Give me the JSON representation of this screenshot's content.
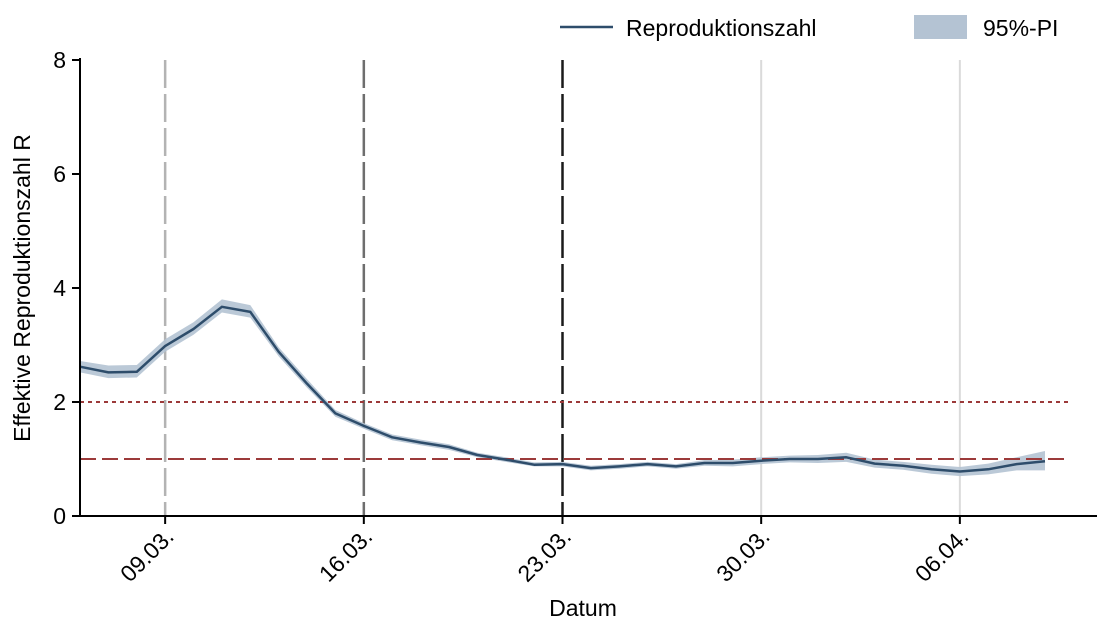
{
  "chart_data": {
    "type": "line",
    "title": "",
    "xlabel": "Datum",
    "ylabel": "Effektive Reproduktionszahl R",
    "ylim": [
      0,
      8
    ],
    "xlim": [
      "2020-03-06",
      "2020-04-09"
    ],
    "yticks": [
      0,
      2,
      4,
      6,
      8
    ],
    "xticks": [
      {
        "date": "2020-03-09",
        "label": "09.03."
      },
      {
        "date": "2020-03-16",
        "label": "16.03."
      },
      {
        "date": "2020-03-23",
        "label": "23.03."
      },
      {
        "date": "2020-03-30",
        "label": "30.03."
      },
      {
        "date": "2020-04-06",
        "label": "06.04."
      }
    ],
    "legend": {
      "position": "top-right",
      "line_label": "Reproduktionszahl",
      "band_label": "95%-PI"
    },
    "colors": {
      "line": "#2e4d6b",
      "band": "#b4c3d3",
      "reference": "#9c3a3a",
      "event_1": "#b3b3b3",
      "event_2": "#6e6e6e",
      "event_3": "#1a1a1a",
      "grid": "#dadada"
    },
    "vertical_markers": [
      {
        "date": "2020-03-09",
        "style": "event_1"
      },
      {
        "date": "2020-03-16",
        "style": "event_2"
      },
      {
        "date": "2020-03-23",
        "style": "event_3"
      },
      {
        "date": "2020-03-30",
        "style": "grid"
      },
      {
        "date": "2020-04-06",
        "style": "grid"
      }
    ],
    "reference_lines": [
      {
        "y": 2,
        "style": "dotted"
      },
      {
        "y": 1,
        "style": "dashed"
      }
    ],
    "series": [
      {
        "name": "Reproduktionszahl",
        "x": [
          "2020-03-06",
          "2020-03-07",
          "2020-03-08",
          "2020-03-09",
          "2020-03-10",
          "2020-03-11",
          "2020-03-12",
          "2020-03-13",
          "2020-03-14",
          "2020-03-15",
          "2020-03-16",
          "2020-03-17",
          "2020-03-18",
          "2020-03-19",
          "2020-03-20",
          "2020-03-21",
          "2020-03-22",
          "2020-03-23",
          "2020-03-24",
          "2020-03-25",
          "2020-03-26",
          "2020-03-27",
          "2020-03-28",
          "2020-03-29",
          "2020-03-30",
          "2020-03-31",
          "2020-04-01",
          "2020-04-02",
          "2020-04-03",
          "2020-04-04",
          "2020-04-05",
          "2020-04-06",
          "2020-04-07",
          "2020-04-08",
          "2020-04-09"
        ],
        "y": [
          2.62,
          2.52,
          2.53,
          2.98,
          3.28,
          3.67,
          3.58,
          2.88,
          2.32,
          1.8,
          1.58,
          1.38,
          1.29,
          1.21,
          1.07,
          0.99,
          0.9,
          0.91,
          0.84,
          0.87,
          0.91,
          0.87,
          0.93,
          0.93,
          0.97,
          1.0,
          1.0,
          1.03,
          0.92,
          0.88,
          0.82,
          0.78,
          0.82,
          0.91,
          0.96
        ],
        "lower": [
          2.52,
          2.42,
          2.43,
          2.88,
          3.18,
          3.57,
          3.48,
          2.8,
          2.25,
          1.74,
          1.53,
          1.33,
          1.24,
          1.16,
          1.03,
          0.95,
          0.87,
          0.87,
          0.8,
          0.83,
          0.87,
          0.83,
          0.88,
          0.87,
          0.91,
          0.94,
          0.93,
          0.95,
          0.85,
          0.81,
          0.74,
          0.7,
          0.73,
          0.8,
          0.8
        ],
        "upper": [
          2.72,
          2.64,
          2.65,
          3.1,
          3.4,
          3.8,
          3.7,
          2.96,
          2.4,
          1.86,
          1.63,
          1.43,
          1.34,
          1.26,
          1.11,
          1.03,
          0.94,
          0.95,
          0.88,
          0.91,
          0.95,
          0.91,
          0.98,
          0.99,
          1.03,
          1.06,
          1.07,
          1.11,
          0.99,
          0.95,
          0.9,
          0.86,
          0.92,
          1.03,
          1.14
        ]
      }
    ]
  }
}
